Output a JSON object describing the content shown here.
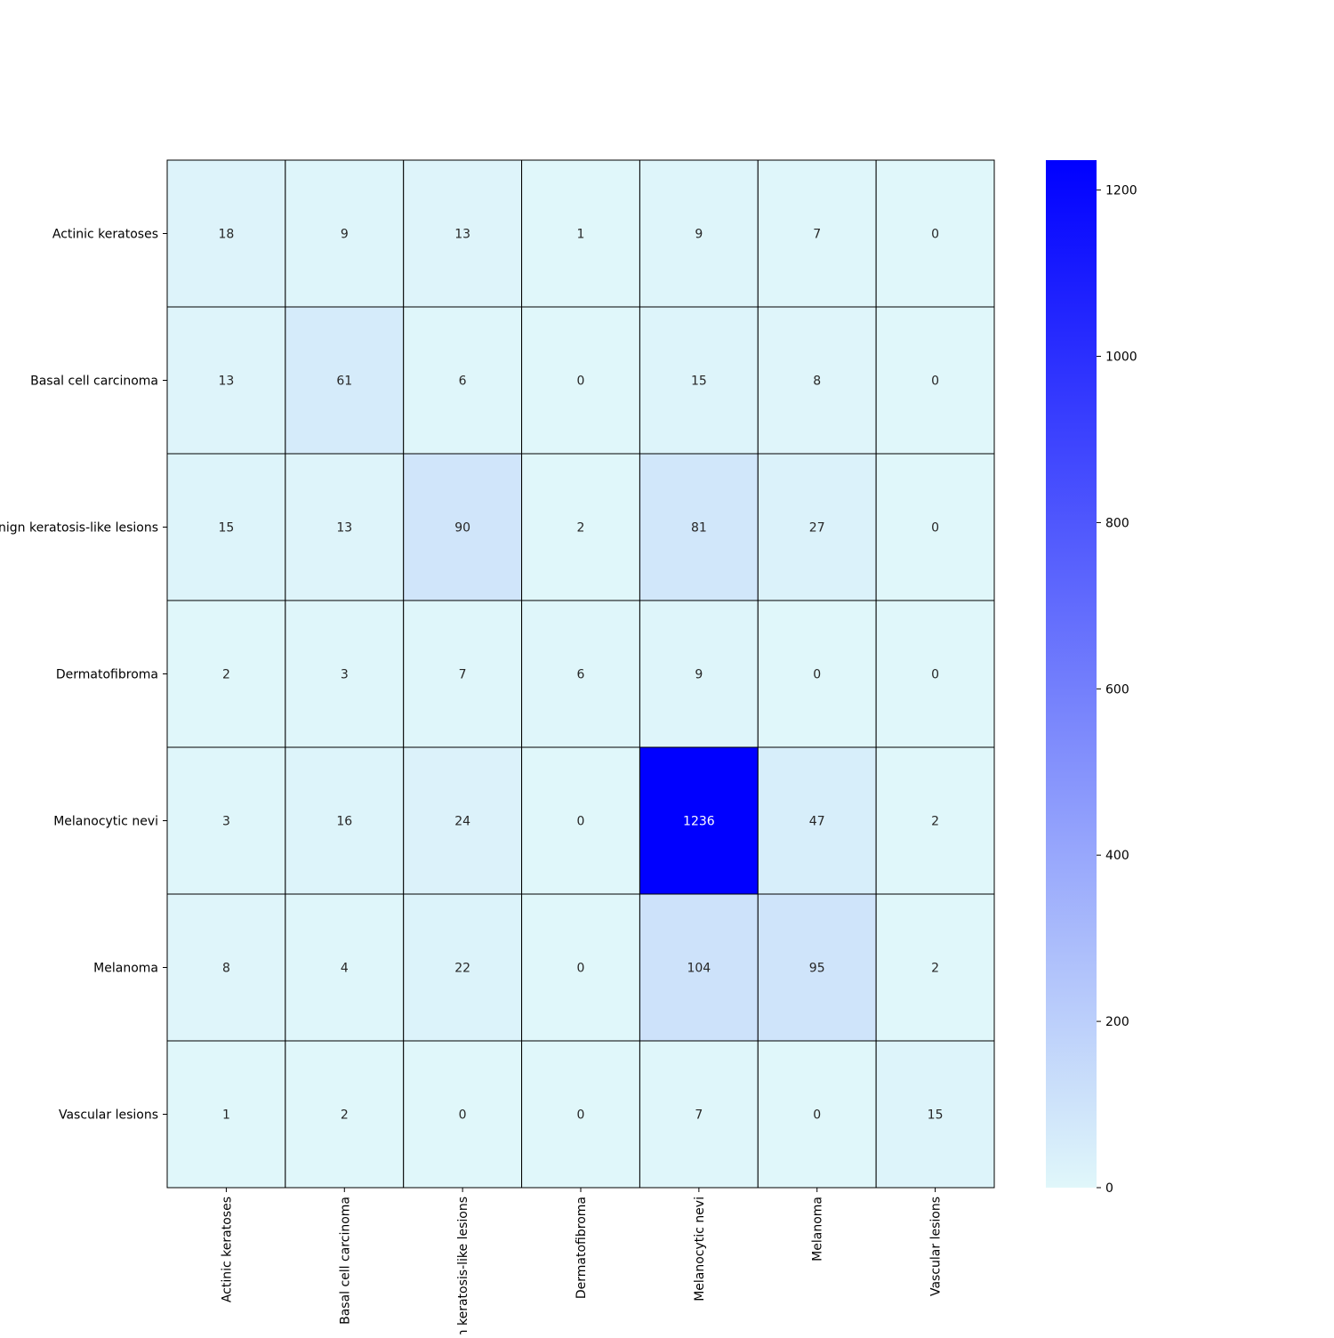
{
  "chart_data": {
    "type": "heatmap",
    "title": "",
    "xlabel": "",
    "ylabel": "",
    "row_labels": [
      "Actinic keratoses",
      "Basal cell carcinoma",
      "Benign keratosis-like lesions ",
      "Dermatofibroma",
      "Melanocytic nevi",
      "Melanoma",
      "Vascular lesions"
    ],
    "col_labels": [
      "Actinic keratoses",
      "Basal cell carcinoma",
      "Benign keratosis-like lesions",
      "Dermatofibroma",
      "Melanocytic nevi",
      "Melanoma",
      "Vascular lesions"
    ],
    "values": [
      [
        18,
        9,
        13,
        1,
        9,
        7,
        0
      ],
      [
        13,
        61,
        6,
        0,
        15,
        8,
        0
      ],
      [
        15,
        13,
        90,
        2,
        81,
        27,
        0
      ],
      [
        2,
        3,
        7,
        6,
        9,
        0,
        0
      ],
      [
        3,
        16,
        24,
        0,
        1236,
        47,
        2
      ],
      [
        8,
        4,
        22,
        0,
        104,
        95,
        2
      ],
      [
        1,
        2,
        0,
        0,
        7,
        0,
        15
      ]
    ],
    "colorbar": {
      "min": 0,
      "max": 1236,
      "ticks": [
        0,
        200,
        400,
        600,
        800,
        1000,
        1200
      ],
      "low_color": "#e0f7fa",
      "high_color": "#0000ff"
    },
    "annotations": true,
    "grid": true
  }
}
